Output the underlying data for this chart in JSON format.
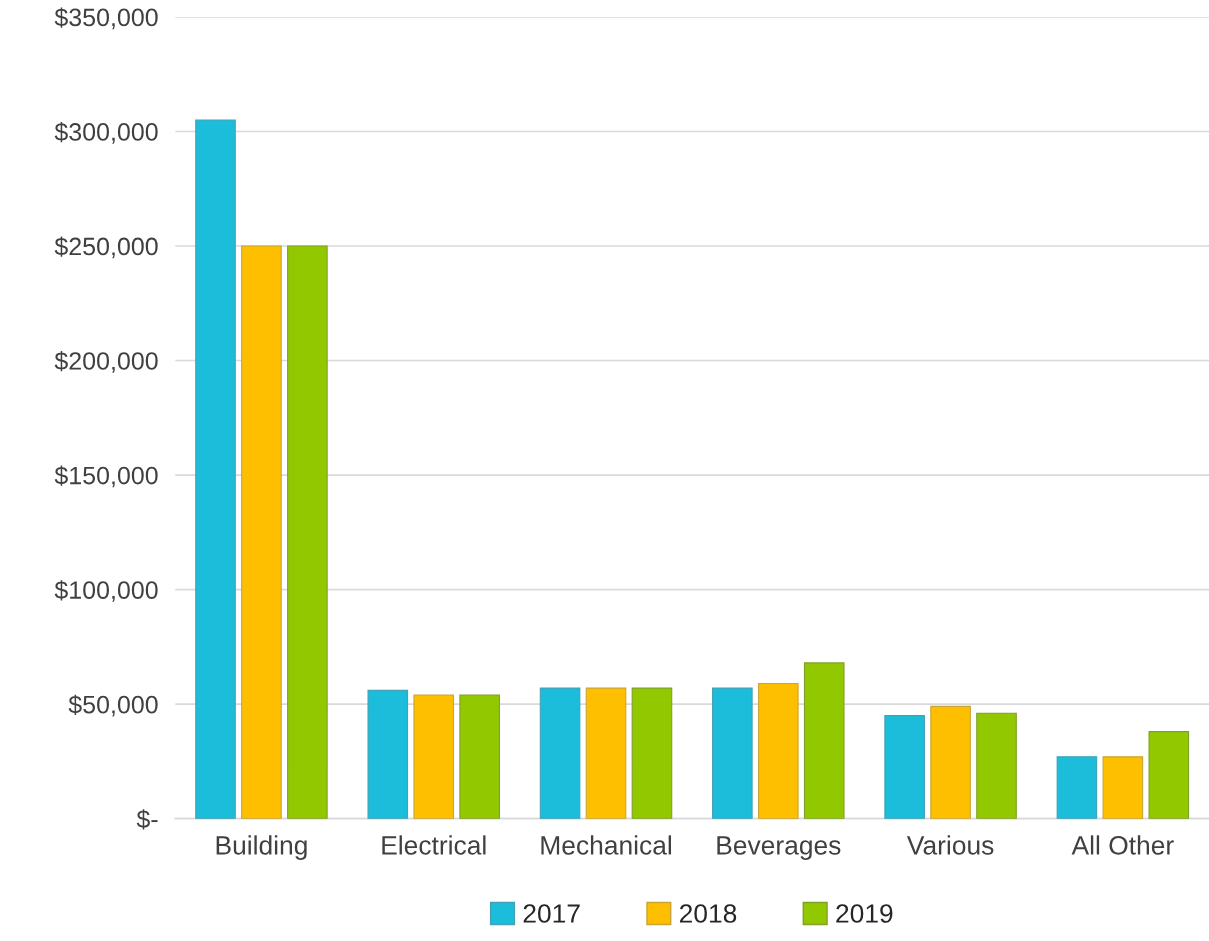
{
  "chart_data": {
    "type": "bar",
    "categories": [
      "Building",
      "Electrical",
      "Mechanical",
      "Beverages",
      "Various",
      "All Other"
    ],
    "series": [
      {
        "name": "2017",
        "color": "#1cbcdb",
        "values": [
          305000,
          56000,
          57000,
          57000,
          45000,
          27000
        ]
      },
      {
        "name": "2018",
        "color": "#fdbf00",
        "values": [
          250000,
          54000,
          57000,
          59000,
          49000,
          27000
        ]
      },
      {
        "name": "2019",
        "color": "#92c800",
        "values": [
          250000,
          54000,
          57000,
          68000,
          46000,
          38000
        ]
      }
    ],
    "ylim": [
      0,
      350000
    ],
    "yticks": [
      {
        "value": 0,
        "label": "$-"
      },
      {
        "value": 50000,
        "label": "$50,000"
      },
      {
        "value": 100000,
        "label": "$100,000"
      },
      {
        "value": 150000,
        "label": "$150,000"
      },
      {
        "value": 200000,
        "label": "$200,000"
      },
      {
        "value": 250000,
        "label": "$250,000"
      },
      {
        "value": 300000,
        "label": "$300,000"
      },
      {
        "value": 350000,
        "label": "$350,000"
      }
    ],
    "grid": "y",
    "legend": "bottom"
  }
}
